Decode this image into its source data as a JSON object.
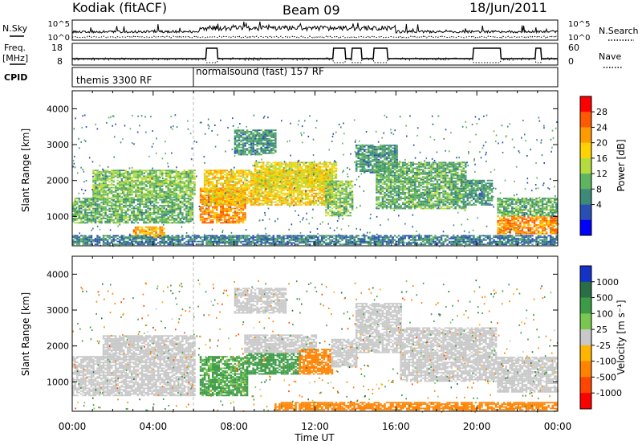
{
  "header": {
    "station": "Kodiak (fitACF)",
    "beam": "Beam 09",
    "date": "18/Jun/2011"
  },
  "summary": {
    "nsky_label": "N.Sky",
    "nsky_ticks": [
      "10^5",
      "10^0"
    ],
    "nsearch_label": "N.Search",
    "nsearch_ticks": [
      "10^5",
      "10^0"
    ],
    "freq_label_1": "Freq.",
    "freq_label_2": "[MHz]",
    "freq_ticks": [
      "18",
      "8"
    ],
    "nave_label": "Nave",
    "nave_ticks": [
      "60",
      "0"
    ],
    "cpid_label": "CPID",
    "cpid_segments": [
      {
        "label": "themis 3300 RF",
        "start_hour": 0,
        "end_hour": 6
      },
      {
        "label": "normalsound (fast) 157 RF",
        "start_hour": 6,
        "end_hour": 24
      }
    ]
  },
  "power_colorbar": {
    "label": "Power [dB]",
    "ticks": [
      "28",
      "24",
      "20",
      "16",
      "12",
      "8",
      "4"
    ],
    "colors": [
      "#ff0000",
      "#ff5a00",
      "#ff9a00",
      "#ffd200",
      "#b4dc3c",
      "#5fb45f",
      "#3c8a78",
      "#2a4fb4",
      "#0000ff"
    ]
  },
  "velocity_colorbar": {
    "label": "Velocity [m s⁻¹]",
    "ticks": [
      "1000",
      "500",
      "100",
      "25",
      "-25",
      "-100",
      "-500",
      "-1000"
    ],
    "colors": [
      "#1432c8",
      "#2a6e46",
      "#3c9b46",
      "#78c850",
      "#c8c8c8",
      "#ffb400",
      "#ff8200",
      "#ff4600",
      "#ff0000"
    ]
  },
  "axes": {
    "ylabel": "Slant Range [km]",
    "xlabel": "Time UT",
    "y_ticks": [
      "1000",
      "2000",
      "3000",
      "4000"
    ],
    "x_ticks": [
      "00:00",
      "04:00",
      "08:00",
      "12:00",
      "16:00",
      "20:00",
      "00:00"
    ]
  },
  "chart_data": [
    {
      "type": "heatmap",
      "name": "power",
      "xlabel": "Time UT",
      "ylabel": "Slant Range [km]",
      "xlim": [
        0,
        24
      ],
      "ylim": [
        180,
        4500
      ],
      "colorbar": "Power [dB]",
      "regions": [
        {
          "t0": 0.0,
          "t1": 5.9,
          "r0": 800,
          "r1": 1500,
          "level": 12
        },
        {
          "t0": 1.0,
          "t1": 6.0,
          "r0": 1500,
          "r1": 2300,
          "level": 14
        },
        {
          "t0": 3.0,
          "t1": 4.5,
          "r0": 400,
          "r1": 700,
          "level": 22
        },
        {
          "t0": 6.3,
          "t1": 8.5,
          "r0": 800,
          "r1": 1800,
          "level": 24
        },
        {
          "t0": 6.5,
          "t1": 12.8,
          "r0": 1300,
          "r1": 2300,
          "level": 20
        },
        {
          "t0": 8.0,
          "t1": 10.0,
          "r0": 2700,
          "r1": 3400,
          "level": 10
        },
        {
          "t0": 9.0,
          "t1": 13.0,
          "r0": 1800,
          "r1": 2500,
          "level": 18
        },
        {
          "t0": 12.5,
          "t1": 13.8,
          "r0": 1000,
          "r1": 2000,
          "level": 14
        },
        {
          "t0": 14.0,
          "t1": 16.0,
          "r0": 2200,
          "r1": 3000,
          "level": 10
        },
        {
          "t0": 15.0,
          "t1": 19.5,
          "r0": 1200,
          "r1": 2500,
          "level": 12
        },
        {
          "t0": 19.5,
          "t1": 20.8,
          "r0": 1300,
          "r1": 2000,
          "level": 10
        },
        {
          "t0": 21.0,
          "t1": 24.0,
          "r0": 500,
          "r1": 1000,
          "level": 24
        },
        {
          "t0": 21.0,
          "t1": 24.0,
          "r0": 1000,
          "r1": 1500,
          "level": 12
        },
        {
          "t0": 0.0,
          "t1": 24.0,
          "r0": 200,
          "r1": 450,
          "level": 8
        }
      ]
    },
    {
      "type": "heatmap",
      "name": "velocity",
      "xlabel": "Time UT",
      "ylabel": "Slant Range [km]",
      "xlim": [
        0,
        24
      ],
      "ylim": [
        180,
        4500
      ],
      "colorbar": "Velocity [m s⁻¹]",
      "regions": [
        {
          "t0": 0.0,
          "t1": 6.0,
          "r0": 600,
          "r1": 1700,
          "level": 0
        },
        {
          "t0": 1.5,
          "t1": 6.0,
          "r0": 1700,
          "r1": 2300,
          "level": 0
        },
        {
          "t0": 6.3,
          "t1": 8.6,
          "r0": 600,
          "r1": 1700,
          "level": 120
        },
        {
          "t0": 8.6,
          "t1": 11.2,
          "r0": 1200,
          "r1": 1800,
          "level": 300
        },
        {
          "t0": 8.5,
          "t1": 12.0,
          "r0": 1800,
          "r1": 2300,
          "level": 0
        },
        {
          "t0": 8.0,
          "t1": 10.5,
          "r0": 2900,
          "r1": 3600,
          "level": 0
        },
        {
          "t0": 11.2,
          "t1": 12.8,
          "r0": 1200,
          "r1": 1900,
          "level": -200
        },
        {
          "t0": 12.8,
          "t1": 14.0,
          "r0": 1400,
          "r1": 2200,
          "level": 0
        },
        {
          "t0": 14.0,
          "t1": 16.2,
          "r0": 1800,
          "r1": 3200,
          "level": 0
        },
        {
          "t0": 16.2,
          "t1": 21.0,
          "r0": 1000,
          "r1": 2500,
          "level": 0
        },
        {
          "t0": 21.0,
          "t1": 24.0,
          "r0": 700,
          "r1": 1700,
          "level": 0
        },
        {
          "t0": 10.0,
          "t1": 24.0,
          "r0": 200,
          "r1": 420,
          "level": -150
        }
      ]
    }
  ]
}
